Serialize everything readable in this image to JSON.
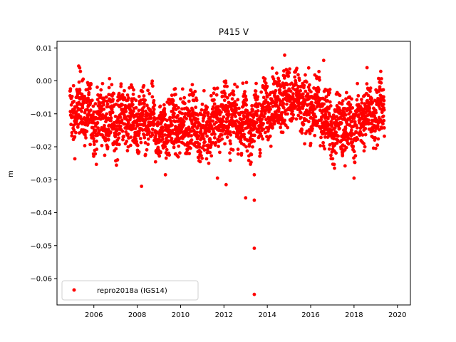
{
  "chart_data": {
    "type": "scatter",
    "title": "P415 V",
    "xlabel": "",
    "ylabel": "m",
    "xlim": [
      2004.3,
      2020.6
    ],
    "ylim": [
      -0.068,
      0.012
    ],
    "xticks": [
      2006,
      2008,
      2010,
      2012,
      2014,
      2016,
      2018,
      2020
    ],
    "yticks": [
      0.01,
      0.0,
      -0.01,
      -0.02,
      -0.03,
      -0.04,
      -0.05,
      -0.06
    ],
    "ytick_labels": [
      "0.01",
      "0.00",
      "−0.01",
      "−0.02",
      "−0.03",
      "−0.04",
      "−0.05",
      "−0.06"
    ],
    "grid": false,
    "legend_position": "lower-left",
    "series": [
      {
        "name": "repro2018a (IGS14)",
        "color": "#ff0000",
        "marker": "circle",
        "x_range": [
          2004.9,
          2019.4
        ],
        "trend_x": [
          2005.0,
          2005.5,
          2006.0,
          2006.5,
          2007.0,
          2007.5,
          2008.0,
          2008.5,
          2009.0,
          2009.5,
          2010.0,
          2010.5,
          2011.0,
          2011.5,
          2012.0,
          2012.5,
          2013.0,
          2013.5,
          2014.0,
          2014.5,
          2015.0,
          2015.5,
          2016.0,
          2016.5,
          2017.0,
          2017.5,
          2018.0,
          2018.5,
          2019.0,
          2019.4
        ],
        "trend_y": [
          -0.01,
          -0.008,
          -0.012,
          -0.011,
          -0.013,
          -0.01,
          -0.014,
          -0.012,
          -0.016,
          -0.013,
          -0.014,
          -0.012,
          -0.016,
          -0.013,
          -0.01,
          -0.011,
          -0.014,
          -0.012,
          -0.008,
          -0.006,
          -0.005,
          -0.007,
          -0.009,
          -0.008,
          -0.015,
          -0.013,
          -0.014,
          -0.01,
          -0.009,
          -0.008
        ],
        "spread": 0.0055,
        "outliers": [
          {
            "x": 2005.3,
            "y": 0.0045
          },
          {
            "x": 2008.2,
            "y": -0.032
          },
          {
            "x": 2009.3,
            "y": -0.0285
          },
          {
            "x": 2011.7,
            "y": -0.0295
          },
          {
            "x": 2012.1,
            "y": -0.0315
          },
          {
            "x": 2013.0,
            "y": -0.0355
          },
          {
            "x": 2013.4,
            "y": -0.0285
          },
          {
            "x": 2013.4,
            "y": -0.0362
          },
          {
            "x": 2013.4,
            "y": -0.0508
          },
          {
            "x": 2013.4,
            "y": -0.0648
          },
          {
            "x": 2014.8,
            "y": 0.0078
          },
          {
            "x": 2016.6,
            "y": 0.0062
          },
          {
            "x": 2017.1,
            "y": -0.0265
          },
          {
            "x": 2018.0,
            "y": -0.0295
          },
          {
            "x": 2018.6,
            "y": 0.004
          },
          {
            "x": 2019.0,
            "y": -0.0205
          }
        ]
      }
    ]
  }
}
